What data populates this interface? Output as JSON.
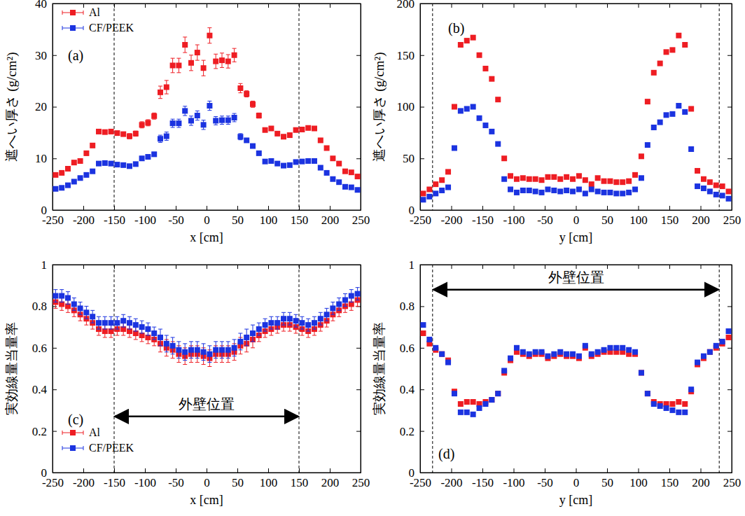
{
  "chart_data": [
    {
      "type": "scatter",
      "title": "(a)",
      "x_label": "x [cm]",
      "y_label": "遮へい厚さ (g/cm²)",
      "xlim": [
        -250,
        250
      ],
      "ylim": [
        0,
        40
      ],
      "xticks": [
        -250,
        -200,
        -150,
        -100,
        -50,
        0,
        50,
        100,
        150,
        200,
        250
      ],
      "yticks": [
        0,
        10,
        20,
        30,
        40
      ],
      "legend": "upper left",
      "marker": "square",
      "reference_lines": [
        -150,
        150
      ],
      "x": [
        -245,
        -235,
        -225,
        -215,
        -205,
        -195,
        -185,
        -175,
        -165,
        -155,
        -145,
        -135,
        -125,
        -115,
        -105,
        -95,
        -85,
        -75,
        -65,
        -55,
        -45,
        -35,
        -25,
        -15,
        -5,
        5,
        15,
        25,
        35,
        45,
        55,
        65,
        75,
        85,
        95,
        105,
        115,
        125,
        135,
        145,
        155,
        165,
        175,
        185,
        195,
        205,
        215,
        225,
        235,
        245
      ],
      "series": [
        {
          "name": "Al",
          "color": "#ee1d23",
          "values": [
            6.8,
            7.2,
            8.0,
            9.2,
            9.5,
            11.0,
            12.5,
            15.2,
            15.1,
            15.2,
            14.9,
            14.7,
            14.3,
            14.8,
            16.5,
            16.9,
            18.2,
            22.8,
            23.8,
            28.0,
            28.0,
            32.0,
            28.5,
            30.5,
            27.5,
            33.8,
            28.8,
            29.0,
            28.8,
            30.0,
            23.6,
            22.5,
            20.5,
            18.3,
            15.5,
            15.8,
            14.8,
            14.2,
            14.5,
            15.5,
            15.6,
            15.9,
            15.8,
            13.5,
            12.0,
            10.0,
            9.0,
            7.5,
            7.3,
            6.5
          ],
          "errors": [
            0.3,
            0.3,
            0.3,
            0.3,
            0.4,
            0.4,
            0.4,
            0.4,
            0.4,
            0.4,
            0.4,
            0.4,
            0.5,
            0.5,
            0.6,
            0.6,
            0.6,
            1.2,
            1.3,
            1.4,
            1.4,
            1.5,
            1.5,
            1.5,
            1.5,
            1.5,
            1.4,
            1.4,
            1.3,
            1.3,
            0.9,
            0.6,
            0.6,
            0.5,
            0.4,
            0.4,
            0.4,
            0.4,
            0.4,
            0.4,
            0.4,
            0.4,
            0.4,
            0.4,
            0.3,
            0.3,
            0.3,
            0.3,
            0.3,
            0.3
          ]
        },
        {
          "name": "CF/PEEK",
          "color": "#1b33e0",
          "values": [
            4.1,
            4.3,
            4.8,
            5.5,
            6.2,
            6.8,
            7.5,
            9.0,
            9.1,
            9.0,
            8.8,
            8.7,
            8.5,
            8.9,
            10.0,
            10.3,
            10.8,
            13.8,
            14.3,
            16.8,
            16.8,
            19.2,
            17.3,
            18.3,
            16.5,
            20.2,
            17.3,
            17.4,
            17.4,
            17.9,
            14.2,
            13.5,
            12.4,
            11.0,
            9.4,
            9.5,
            9.0,
            8.6,
            8.7,
            9.3,
            9.4,
            9.5,
            9.5,
            8.2,
            7.2,
            6.0,
            5.4,
            4.5,
            4.4,
            3.9
          ],
          "errors": [
            0.2,
            0.2,
            0.2,
            0.2,
            0.2,
            0.3,
            0.3,
            0.3,
            0.3,
            0.3,
            0.3,
            0.3,
            0.3,
            0.3,
            0.4,
            0.4,
            0.4,
            0.7,
            0.8,
            0.8,
            0.8,
            0.9,
            0.9,
            0.9,
            0.9,
            0.9,
            0.8,
            0.8,
            0.8,
            0.8,
            0.6,
            0.4,
            0.4,
            0.3,
            0.3,
            0.3,
            0.3,
            0.3,
            0.3,
            0.3,
            0.3,
            0.3,
            0.3,
            0.3,
            0.2,
            0.2,
            0.2,
            0.2,
            0.2,
            0.2
          ]
        }
      ]
    },
    {
      "type": "scatter",
      "title": "(b)",
      "x_label": "y [cm]",
      "y_label": "遮へい厚さ (g/cm²)",
      "xlim": [
        -250,
        250
      ],
      "ylim": [
        0,
        200
      ],
      "xticks": [
        -250,
        -200,
        -150,
        -100,
        -50,
        0,
        50,
        100,
        150,
        200,
        250
      ],
      "yticks": [
        0,
        50,
        100,
        150,
        200
      ],
      "marker": "square",
      "reference_lines": [
        -230,
        230
      ],
      "x": [
        -245,
        -235,
        -225,
        -215,
        -205,
        -195,
        -185,
        -175,
        -165,
        -155,
        -145,
        -135,
        -125,
        -115,
        -105,
        -95,
        -85,
        -75,
        -65,
        -55,
        -45,
        -35,
        -25,
        -15,
        -5,
        5,
        15,
        25,
        35,
        45,
        55,
        65,
        75,
        85,
        95,
        105,
        115,
        125,
        135,
        145,
        155,
        165,
        175,
        185,
        195,
        205,
        215,
        225,
        235,
        245
      ],
      "series": [
        {
          "color": "#ee1d23",
          "values": [
            16,
            20,
            25,
            29,
            37,
            100,
            160,
            164,
            167,
            150,
            137,
            127,
            107,
            50,
            33,
            30,
            31,
            30,
            30,
            29,
            32,
            32,
            30,
            32,
            30,
            33,
            29,
            25,
            31,
            28,
            28,
            27,
            27,
            28,
            34,
            52,
            105,
            133,
            142,
            153,
            155,
            169,
            160,
            98,
            38,
            30,
            27,
            24,
            23,
            18
          ]
        },
        {
          "color": "#1b33e0",
          "values": [
            10,
            13,
            16,
            19,
            22,
            60,
            96,
            98,
            100,
            89,
            82,
            76,
            64,
            30,
            20,
            17,
            19,
            19,
            18,
            17,
            20,
            19,
            18,
            19,
            18,
            20,
            16,
            20,
            18,
            17,
            17,
            16,
            16,
            17,
            20,
            31,
            63,
            80,
            85,
            92,
            93,
            101,
            95,
            59,
            23,
            21,
            18,
            15,
            14,
            11
          ]
        }
      ]
    },
    {
      "type": "scatter",
      "title": "(c)",
      "x_label": "x [cm]",
      "y_label": "実効線量当量率",
      "xlim": [
        -250,
        250
      ],
      "ylim": [
        0,
        1
      ],
      "xticks": [
        -250,
        -200,
        -150,
        -100,
        -50,
        0,
        50,
        100,
        150,
        200,
        250
      ],
      "yticks": [
        0,
        0.2,
        0.4,
        0.6,
        0.8,
        1
      ],
      "legend": "lower left",
      "marker": "square",
      "reference_lines": [
        -150,
        150
      ],
      "annotation": {
        "text": "外壁位置",
        "x_from": -150,
        "x_to": 150,
        "y": 0.27
      },
      "x": [
        -245,
        -235,
        -225,
        -215,
        -205,
        -195,
        -185,
        -175,
        -165,
        -155,
        -145,
        -135,
        -125,
        -115,
        -105,
        -95,
        -85,
        -75,
        -65,
        -55,
        -45,
        -35,
        -25,
        -15,
        -5,
        5,
        15,
        25,
        35,
        45,
        55,
        65,
        75,
        85,
        95,
        105,
        115,
        125,
        135,
        145,
        155,
        165,
        175,
        185,
        195,
        205,
        215,
        225,
        235,
        245
      ],
      "series": [
        {
          "name": "Al",
          "color": "#ee1d23",
          "values": [
            0.82,
            0.81,
            0.8,
            0.78,
            0.76,
            0.74,
            0.72,
            0.69,
            0.68,
            0.68,
            0.69,
            0.69,
            0.68,
            0.67,
            0.66,
            0.65,
            0.64,
            0.62,
            0.6,
            0.59,
            0.57,
            0.56,
            0.57,
            0.57,
            0.56,
            0.55,
            0.57,
            0.57,
            0.57,
            0.58,
            0.61,
            0.62,
            0.64,
            0.66,
            0.68,
            0.69,
            0.7,
            0.71,
            0.71,
            0.7,
            0.69,
            0.68,
            0.69,
            0.71,
            0.73,
            0.76,
            0.78,
            0.8,
            0.81,
            0.83
          ],
          "errors": [
            0.03,
            0.03,
            0.03,
            0.03,
            0.03,
            0.03,
            0.03,
            0.03,
            0.03,
            0.03,
            0.03,
            0.03,
            0.03,
            0.03,
            0.03,
            0.03,
            0.03,
            0.04,
            0.04,
            0.04,
            0.04,
            0.04,
            0.04,
            0.04,
            0.04,
            0.04,
            0.04,
            0.04,
            0.04,
            0.04,
            0.04,
            0.04,
            0.04,
            0.03,
            0.03,
            0.03,
            0.03,
            0.03,
            0.03,
            0.03,
            0.03,
            0.03,
            0.03,
            0.03,
            0.03,
            0.03,
            0.03,
            0.03,
            0.03,
            0.03
          ]
        },
        {
          "name": "CF/PEEK",
          "color": "#1b33e0",
          "values": [
            0.85,
            0.85,
            0.84,
            0.81,
            0.79,
            0.77,
            0.75,
            0.72,
            0.72,
            0.72,
            0.72,
            0.73,
            0.72,
            0.71,
            0.7,
            0.69,
            0.67,
            0.65,
            0.62,
            0.61,
            0.59,
            0.58,
            0.59,
            0.59,
            0.58,
            0.57,
            0.59,
            0.59,
            0.59,
            0.6,
            0.63,
            0.65,
            0.67,
            0.69,
            0.71,
            0.72,
            0.72,
            0.74,
            0.74,
            0.73,
            0.72,
            0.71,
            0.72,
            0.74,
            0.76,
            0.79,
            0.81,
            0.83,
            0.85,
            0.86
          ],
          "errors": [
            0.03,
            0.03,
            0.03,
            0.03,
            0.03,
            0.03,
            0.03,
            0.03,
            0.03,
            0.03,
            0.03,
            0.03,
            0.03,
            0.03,
            0.03,
            0.03,
            0.03,
            0.04,
            0.04,
            0.04,
            0.04,
            0.04,
            0.04,
            0.04,
            0.04,
            0.04,
            0.04,
            0.04,
            0.04,
            0.04,
            0.04,
            0.04,
            0.04,
            0.03,
            0.03,
            0.03,
            0.03,
            0.03,
            0.03,
            0.03,
            0.03,
            0.03,
            0.03,
            0.03,
            0.03,
            0.03,
            0.03,
            0.03,
            0.03,
            0.03
          ]
        }
      ]
    },
    {
      "type": "scatter",
      "title": "(d)",
      "x_label": "y [cm]",
      "y_label": "実効線量当量率",
      "xlim": [
        -250,
        250
      ],
      "ylim": [
        0,
        1
      ],
      "xticks": [
        -250,
        -200,
        -150,
        -100,
        -50,
        0,
        50,
        100,
        150,
        200,
        250
      ],
      "yticks": [
        0,
        0.2,
        0.4,
        0.6,
        0.8,
        1
      ],
      "marker": "square",
      "reference_lines": [
        -230,
        230
      ],
      "annotation": {
        "text": "外壁位置",
        "x_from": -230,
        "x_to": 230,
        "y": 0.88
      },
      "x": [
        -245,
        -235,
        -225,
        -215,
        -205,
        -195,
        -185,
        -175,
        -165,
        -155,
        -145,
        -135,
        -125,
        -115,
        -105,
        -95,
        -85,
        -75,
        -65,
        -55,
        -45,
        -35,
        -25,
        -15,
        -5,
        5,
        15,
        25,
        35,
        45,
        55,
        65,
        75,
        85,
        95,
        105,
        115,
        125,
        135,
        145,
        155,
        165,
        175,
        185,
        195,
        205,
        215,
        225,
        235,
        245
      ],
      "series": [
        {
          "color": "#ee1d23",
          "values": [
            0.67,
            0.62,
            0.59,
            0.57,
            0.54,
            0.39,
            0.33,
            0.34,
            0.34,
            0.33,
            0.34,
            0.35,
            0.38,
            0.48,
            0.54,
            0.58,
            0.57,
            0.56,
            0.57,
            0.57,
            0.55,
            0.56,
            0.57,
            0.56,
            0.56,
            0.55,
            0.6,
            0.56,
            0.57,
            0.58,
            0.58,
            0.58,
            0.58,
            0.57,
            0.57,
            0.48,
            0.38,
            0.34,
            0.33,
            0.33,
            0.33,
            0.34,
            0.33,
            0.39,
            0.52,
            0.55,
            0.58,
            0.6,
            0.62,
            0.65
          ]
        },
        {
          "color": "#1b33e0",
          "values": [
            0.71,
            0.64,
            0.6,
            0.57,
            0.53,
            0.38,
            0.29,
            0.29,
            0.28,
            0.31,
            0.33,
            0.35,
            0.38,
            0.49,
            0.55,
            0.6,
            0.58,
            0.57,
            0.58,
            0.58,
            0.56,
            0.57,
            0.58,
            0.57,
            0.57,
            0.56,
            0.61,
            0.57,
            0.58,
            0.59,
            0.6,
            0.6,
            0.6,
            0.59,
            0.58,
            0.48,
            0.38,
            0.33,
            0.32,
            0.31,
            0.3,
            0.29,
            0.29,
            0.4,
            0.53,
            0.56,
            0.58,
            0.61,
            0.63,
            0.68
          ]
        }
      ]
    }
  ]
}
